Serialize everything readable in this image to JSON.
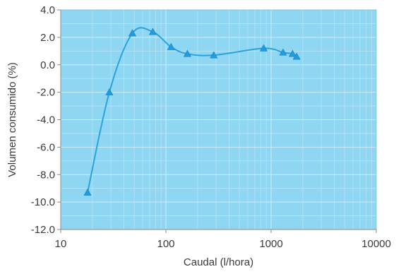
{
  "chart_data": {
    "type": "line",
    "title": "",
    "xlabel": "Caudal (l/hora)",
    "ylabel": "Volumen consumido (%)",
    "x_scale": "log",
    "xlim": [
      10,
      10000
    ],
    "ylim": [
      -12.0,
      4.0
    ],
    "x_ticks": [
      "10",
      "100",
      "1000",
      "10000"
    ],
    "y_ticks": [
      "4.0",
      "2.0",
      "0.0",
      "-2.0",
      "-4.0",
      "-6.0",
      "-8.0",
      "-10.0",
      "-12.0"
    ],
    "grid": true,
    "legend": "none",
    "series": [
      {
        "marker": "triangle",
        "x": [
          18,
          29,
          48,
          75,
          112,
          160,
          285,
          850,
          1300,
          1600,
          1750
        ],
        "y": [
          -9.3,
          -2.0,
          2.3,
          2.4,
          1.3,
          0.8,
          0.7,
          1.2,
          0.9,
          0.8,
          0.6
        ]
      }
    ],
    "colors": {
      "plot_background": "#8fd6f2",
      "line": "#2aa2e0",
      "marker": "#1f9de0",
      "grid": "#b6e4f6",
      "axis": "#8a8a8a",
      "text": "#3a3a3a"
    }
  }
}
